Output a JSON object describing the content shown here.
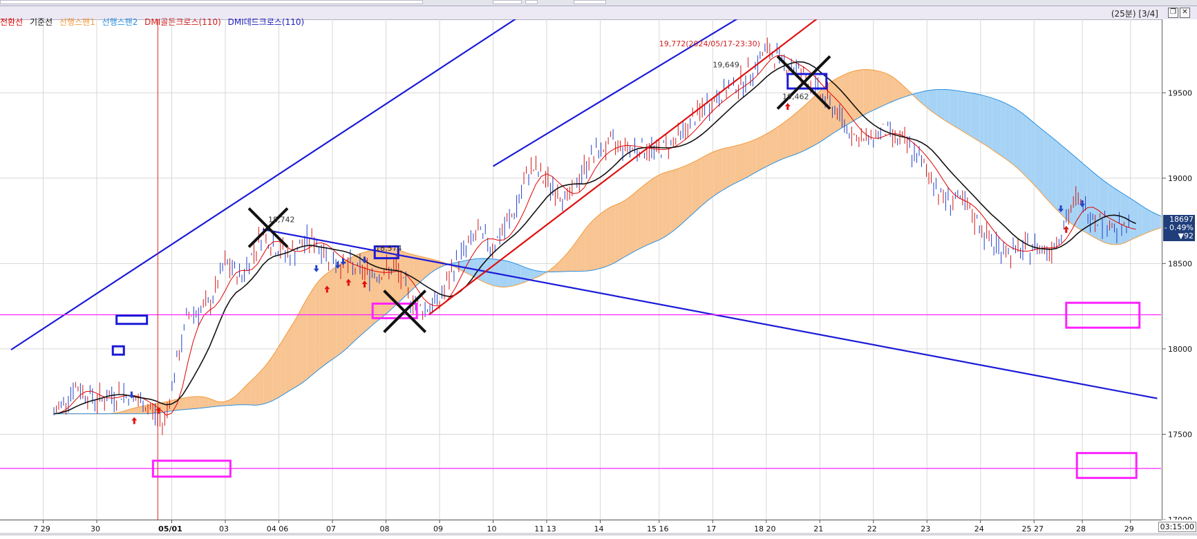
{
  "window": {
    "period_label": "(25분) [3/4]",
    "time_label": "03:15:00"
  },
  "legend": [
    {
      "label": "전환선",
      "color": "#e00000"
    },
    {
      "label": "기준선",
      "color": "#111111"
    },
    {
      "label": "선행스팬1",
      "color": "#f39a3a"
    },
    {
      "label": "선행스팬2",
      "color": "#2a8fe0"
    },
    {
      "label": "DMI골든크로스(110)",
      "color": "#d02020"
    },
    {
      "label": "DMI데드크로스(110)",
      "color": "#2020c0"
    }
  ],
  "last_price": {
    "price": "18697",
    "change_pct": "- 0.49%",
    "change": "▼92"
  },
  "chart_data": {
    "type": "line",
    "ylim": [
      17000,
      19930
    ],
    "yticks": [
      17000,
      17500,
      18000,
      18500,
      19000,
      19500
    ],
    "xticks": [
      {
        "i": -0.2,
        "label": "7 29"
      },
      {
        "i": 0.8,
        "label": "30"
      },
      {
        "i": 2.2,
        "label": "05/01"
      },
      {
        "i": 3.2,
        "label": "03"
      },
      {
        "i": 4.2,
        "label": "04 06"
      },
      {
        "i": 5.2,
        "label": "07"
      },
      {
        "i": 6.2,
        "label": "08"
      },
      {
        "i": 7.2,
        "label": "09"
      },
      {
        "i": 8.2,
        "label": "10"
      },
      {
        "i": 9.2,
        "label": "11 13"
      },
      {
        "i": 10.2,
        "label": "14"
      },
      {
        "i": 11.3,
        "label": "15 16"
      },
      {
        "i": 12.3,
        "label": "17"
      },
      {
        "i": 13.3,
        "label": "18 20"
      },
      {
        "i": 14.3,
        "label": "21"
      },
      {
        "i": 15.3,
        "label": "22"
      },
      {
        "i": 16.3,
        "label": "23"
      },
      {
        "i": 17.3,
        "label": "24"
      },
      {
        "i": 18.3,
        "label": "25 27"
      },
      {
        "i": 19.2,
        "label": "28"
      },
      {
        "i": 20.1,
        "label": "29"
      }
    ],
    "price_path": [
      [
        0,
        17620
      ],
      [
        0.4,
        17780
      ],
      [
        0.8,
        17700
      ],
      [
        1.3,
        17740
      ],
      [
        1.8,
        17650
      ],
      [
        2.05,
        17560
      ],
      [
        2.2,
        17780
      ],
      [
        2.5,
        18200
      ],
      [
        2.9,
        18250
      ],
      [
        3.2,
        18500
      ],
      [
        3.5,
        18420
      ],
      [
        3.9,
        18680
      ],
      [
        4.1,
        18600
      ],
      [
        4.4,
        18550
      ],
      [
        4.8,
        18650
      ],
      [
        5.2,
        18520
      ],
      [
        5.6,
        18470
      ],
      [
        6.0,
        18440
      ],
      [
        6.4,
        18470
      ],
      [
        6.6,
        18320
      ],
      [
        6.9,
        18230
      ],
      [
        7.2,
        18280
      ],
      [
        7.5,
        18500
      ],
      [
        7.9,
        18680
      ],
      [
        8.2,
        18600
      ],
      [
        8.6,
        18800
      ],
      [
        8.9,
        19070
      ],
      [
        9.2,
        18980
      ],
      [
        9.6,
        18870
      ],
      [
        10.0,
        19120
      ],
      [
        10.4,
        19200
      ],
      [
        10.8,
        19180
      ],
      [
        11.3,
        19160
      ],
      [
        11.7,
        19250
      ],
      [
        12.1,
        19400
      ],
      [
        12.5,
        19500
      ],
      [
        12.9,
        19580
      ],
      [
        13.3,
        19750
      ],
      [
        13.6,
        19680
      ],
      [
        13.9,
        19640
      ],
      [
        14.2,
        19520
      ],
      [
        14.5,
        19440
      ],
      [
        14.8,
        19300
      ],
      [
        15.1,
        19210
      ],
      [
        15.5,
        19280
      ],
      [
        15.9,
        19200
      ],
      [
        16.3,
        19050
      ],
      [
        16.6,
        18880
      ],
      [
        16.9,
        18870
      ],
      [
        17.2,
        18760
      ],
      [
        17.5,
        18620
      ],
      [
        17.9,
        18560
      ],
      [
        18.3,
        18600
      ],
      [
        18.6,
        18580
      ],
      [
        18.9,
        18750
      ],
      [
        19.1,
        18880
      ],
      [
        19.3,
        18800
      ],
      [
        19.6,
        18750
      ],
      [
        19.9,
        18700
      ],
      [
        20.1,
        18697
      ]
    ],
    "annotations": [
      {
        "i": 4.0,
        "y": 18742,
        "label": "18,742"
      },
      {
        "i": 6.0,
        "y": 18574,
        "label": "18,574"
      },
      {
        "i": 11.3,
        "y": 19772,
        "label": "19,772(2024/05/17-23:30)"
      },
      {
        "i": 12.3,
        "y": 19649,
        "label": "19,649"
      },
      {
        "i": 13.6,
        "y": 19462,
        "label": "19,462"
      }
    ]
  }
}
